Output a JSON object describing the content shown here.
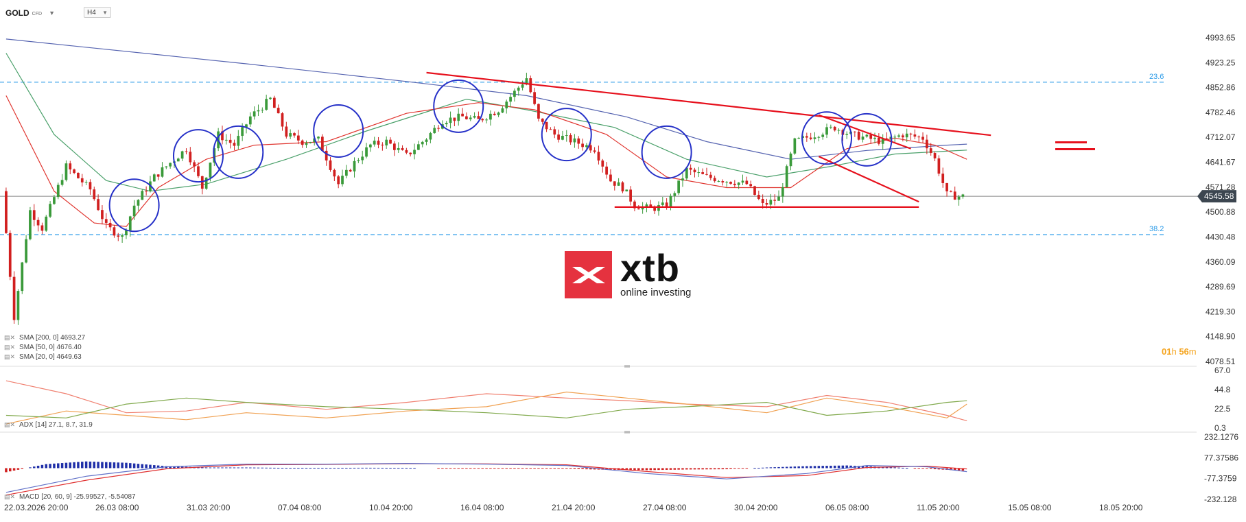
{
  "header": {
    "symbol": "GOLD",
    "symbol_type": "CFD",
    "timeframe": "H4"
  },
  "legends": {
    "sma200": "SMA [200, 0] 4693.27",
    "sma50": "SMA [50, 0] 4676.40",
    "sma20": "SMA [20, 0] 4649.63",
    "adx": "ADX [14] 27.1, 8.7, 31.9",
    "macd": "MACD [20, 60, 9] -25.99527, -5.54087"
  },
  "timer": {
    "hours": "01",
    "h_unit": "h",
    "minutes": "56",
    "m_unit": "m"
  },
  "logo": {
    "name": "xtb",
    "tagline": "online investing"
  },
  "colors": {
    "bull": "#3a9a3a",
    "bear": "#d11f1f",
    "sma200": "#5563b0",
    "sma50": "#4aa06a",
    "sma20": "#e0352f",
    "fib": "#2b9be8",
    "trend": "#e6101c",
    "circle": "#2530c8",
    "price_tag": "#3c4650",
    "adx_pos": "#f0a050",
    "adx_neg": "#7fa84a",
    "adx_main": "#f08070",
    "macd_line": "#6070c8",
    "macd_signal": "#e03030"
  },
  "chart_data": {
    "type": "candlestick",
    "instrument": "GOLD",
    "timeframe": "H4",
    "x_ticks": [
      "22.03.2026 20:00",
      "26.03 08:00",
      "31.03 20:00",
      "07.04 08:00",
      "10.04 20:00",
      "16.04 08:00",
      "21.04 20:00",
      "27.04 08:00",
      "30.04 20:00",
      "06.05 08:00",
      "11.05 20:00",
      "15.05 08:00",
      "18.05 20:00"
    ],
    "price_axis": {
      "ticks": [
        "4993.65",
        "4923.25",
        "4852.86",
        "4782.46",
        "4712.07",
        "4641.67",
        "4571.28",
        "4500.88",
        "4430.48",
        "4360.09",
        "4289.69",
        "4219.30",
        "4148.90",
        "4078.51"
      ],
      "ylim": [
        4078.51,
        4993.65
      ]
    },
    "current_price": "4545.58",
    "fib_levels": [
      {
        "label": "23.6",
        "value": 4868
      },
      {
        "label": "38.2",
        "value": 4437
      }
    ],
    "candle_path": [
      [
        0,
        4560
      ],
      [
        3,
        4205
      ],
      [
        7,
        4505
      ],
      [
        10,
        4455
      ],
      [
        16,
        4630
      ],
      [
        22,
        4565
      ],
      [
        26,
        4460
      ],
      [
        30,
        4430
      ],
      [
        33,
        4520
      ],
      [
        38,
        4600
      ],
      [
        42,
        4640
      ],
      [
        46,
        4680
      ],
      [
        50,
        4570
      ],
      [
        54,
        4720
      ],
      [
        58,
        4690
      ],
      [
        62,
        4770
      ],
      [
        67,
        4820
      ],
      [
        71,
        4720
      ],
      [
        75,
        4700
      ],
      [
        79,
        4705
      ],
      [
        84,
        4580
      ],
      [
        88,
        4640
      ],
      [
        92,
        4690
      ],
      [
        96,
        4700
      ],
      [
        101,
        4660
      ],
      [
        106,
        4710
      ],
      [
        110,
        4760
      ],
      [
        115,
        4770
      ],
      [
        119,
        4760
      ],
      [
        124,
        4790
      ],
      [
        128,
        4840
      ],
      [
        131,
        4880
      ],
      [
        134,
        4760
      ],
      [
        138,
        4720
      ],
      [
        143,
        4700
      ],
      [
        148,
        4680
      ],
      [
        152,
        4590
      ],
      [
        155,
        4570
      ],
      [
        158,
        4520
      ],
      [
        162,
        4510
      ],
      [
        166,
        4520
      ],
      [
        171,
        4620
      ],
      [
        176,
        4600
      ],
      [
        181,
        4590
      ],
      [
        186,
        4580
      ],
      [
        190,
        4520
      ],
      [
        194,
        4540
      ],
      [
        198,
        4700
      ],
      [
        203,
        4720
      ],
      [
        208,
        4740
      ],
      [
        212,
        4720
      ],
      [
        216,
        4710
      ],
      [
        220,
        4700
      ],
      [
        225,
        4720
      ],
      [
        230,
        4710
      ],
      [
        233,
        4650
      ],
      [
        236,
        4550
      ],
      [
        239,
        4545
      ]
    ],
    "indicators": {
      "sma200": [
        [
          0,
          4990
        ],
        [
          60,
          4920
        ],
        [
          100,
          4870
        ],
        [
          130,
          4830
        ],
        [
          155,
          4770
        ],
        [
          175,
          4700
        ],
        [
          196,
          4650
        ],
        [
          215,
          4675
        ],
        [
          235,
          4690
        ],
        [
          240,
          4693
        ]
      ],
      "sma50": [
        [
          0,
          4950
        ],
        [
          12,
          4720
        ],
        [
          25,
          4590
        ],
        [
          36,
          4560
        ],
        [
          50,
          4580
        ],
        [
          70,
          4650
        ],
        [
          90,
          4730
        ],
        [
          115,
          4820
        ],
        [
          130,
          4790
        ],
        [
          152,
          4740
        ],
        [
          170,
          4650
        ],
        [
          190,
          4600
        ],
        [
          206,
          4630
        ],
        [
          222,
          4665
        ],
        [
          240,
          4676
        ]
      ],
      "sma20": [
        [
          0,
          4830
        ],
        [
          12,
          4560
        ],
        [
          22,
          4470
        ],
        [
          30,
          4460
        ],
        [
          38,
          4570
        ],
        [
          50,
          4650
        ],
        [
          62,
          4690
        ],
        [
          80,
          4700
        ],
        [
          100,
          4780
        ],
        [
          118,
          4810
        ],
        [
          132,
          4790
        ],
        [
          150,
          4720
        ],
        [
          165,
          4600
        ],
        [
          180,
          4570
        ],
        [
          196,
          4570
        ],
        [
          210,
          4680
        ],
        [
          222,
          4710
        ],
        [
          232,
          4690
        ],
        [
          240,
          4650
        ]
      ]
    },
    "adx": {
      "ylim": [
        0.3,
        67.0
      ],
      "ticks": [
        "67.0",
        "44.8",
        "22.5",
        "0.3"
      ],
      "di_plus": [
        [
          0,
          5
        ],
        [
          15,
          20
        ],
        [
          30,
          15
        ],
        [
          45,
          10
        ],
        [
          60,
          18
        ],
        [
          80,
          12
        ],
        [
          100,
          20
        ],
        [
          120,
          25
        ],
        [
          140,
          42
        ],
        [
          155,
          35
        ],
        [
          170,
          28
        ],
        [
          190,
          18
        ],
        [
          205,
          35
        ],
        [
          220,
          25
        ],
        [
          235,
          12
        ],
        [
          240,
          28
        ]
      ],
      "di_minus": [
        [
          0,
          15
        ],
        [
          15,
          12
        ],
        [
          30,
          28
        ],
        [
          45,
          35
        ],
        [
          60,
          30
        ],
        [
          80,
          25
        ],
        [
          100,
          22
        ],
        [
          120,
          18
        ],
        [
          140,
          12
        ],
        [
          155,
          22
        ],
        [
          170,
          25
        ],
        [
          190,
          30
        ],
        [
          205,
          15
        ],
        [
          220,
          20
        ],
        [
          235,
          30
        ],
        [
          240,
          31.9
        ]
      ],
      "adx_line": [
        [
          0,
          55
        ],
        [
          15,
          40
        ],
        [
          30,
          18
        ],
        [
          45,
          20
        ],
        [
          60,
          30
        ],
        [
          80,
          22
        ],
        [
          100,
          30
        ],
        [
          120,
          40
        ],
        [
          140,
          35
        ],
        [
          155,
          32
        ],
        [
          170,
          28
        ],
        [
          190,
          25
        ],
        [
          205,
          38
        ],
        [
          220,
          30
        ],
        [
          235,
          15
        ],
        [
          240,
          8.7
        ]
      ]
    },
    "macd": {
      "ylim": [
        -232.1276,
        232.1276
      ],
      "ticks": [
        "232.1276",
        "77.37586",
        "-77.3759",
        "-232.128"
      ],
      "line": [
        [
          0,
          -180
        ],
        [
          20,
          -60
        ],
        [
          40,
          10
        ],
        [
          60,
          30
        ],
        [
          80,
          30
        ],
        [
          100,
          35
        ],
        [
          120,
          30
        ],
        [
          140,
          20
        ],
        [
          160,
          -40
        ],
        [
          180,
          -80
        ],
        [
          200,
          -40
        ],
        [
          215,
          20
        ],
        [
          230,
          10
        ],
        [
          240,
          -26
        ]
      ],
      "signal": [
        [
          0,
          -200
        ],
        [
          20,
          -90
        ],
        [
          40,
          -5
        ],
        [
          60,
          25
        ],
        [
          80,
          28
        ],
        [
          100,
          33
        ],
        [
          120,
          32
        ],
        [
          140,
          25
        ],
        [
          160,
          -25
        ],
        [
          180,
          -70
        ],
        [
          200,
          -55
        ],
        [
          215,
          5
        ],
        [
          230,
          15
        ],
        [
          240,
          -5.5
        ]
      ],
      "histogram": [
        [
          0,
          -30
        ],
        [
          10,
          30
        ],
        [
          20,
          50
        ],
        [
          30,
          40
        ],
        [
          40,
          15
        ],
        [
          50,
          5
        ],
        [
          60,
          5
        ],
        [
          70,
          2
        ],
        [
          80,
          2
        ],
        [
          90,
          3
        ],
        [
          100,
          2
        ],
        [
          110,
          -2
        ],
        [
          120,
          -2
        ],
        [
          130,
          -5
        ],
        [
          140,
          -5
        ],
        [
          150,
          -12
        ],
        [
          160,
          -15
        ],
        [
          170,
          -10
        ],
        [
          180,
          -8
        ],
        [
          190,
          5
        ],
        [
          200,
          15
        ],
        [
          210,
          20
        ],
        [
          220,
          8
        ],
        [
          230,
          -5
        ],
        [
          240,
          -20
        ]
      ]
    },
    "annotations": {
      "trendlines": [
        {
          "from": [
            105,
            4895
          ],
          "to": [
            246,
            4718
          ]
        },
        {
          "from": [
            203,
            4775
          ],
          "to": [
            226,
            4680
          ]
        },
        {
          "from": [
            203,
            4658
          ],
          "to": [
            228,
            4530
          ]
        },
        {
          "from": [
            152,
            4515
          ],
          "to": [
            228,
            4515
          ]
        }
      ],
      "circles": [
        {
          "x": 32,
          "y": 4520
        },
        {
          "x": 48,
          "y": 4660
        },
        {
          "x": 58,
          "y": 4670
        },
        {
          "x": 83,
          "y": 4730
        },
        {
          "x": 113,
          "y": 4800
        },
        {
          "x": 140,
          "y": 4720
        },
        {
          "x": 165,
          "y": 4670
        },
        {
          "x": 205,
          "y": 4710
        },
        {
          "x": 215,
          "y": 4705
        }
      ]
    }
  }
}
